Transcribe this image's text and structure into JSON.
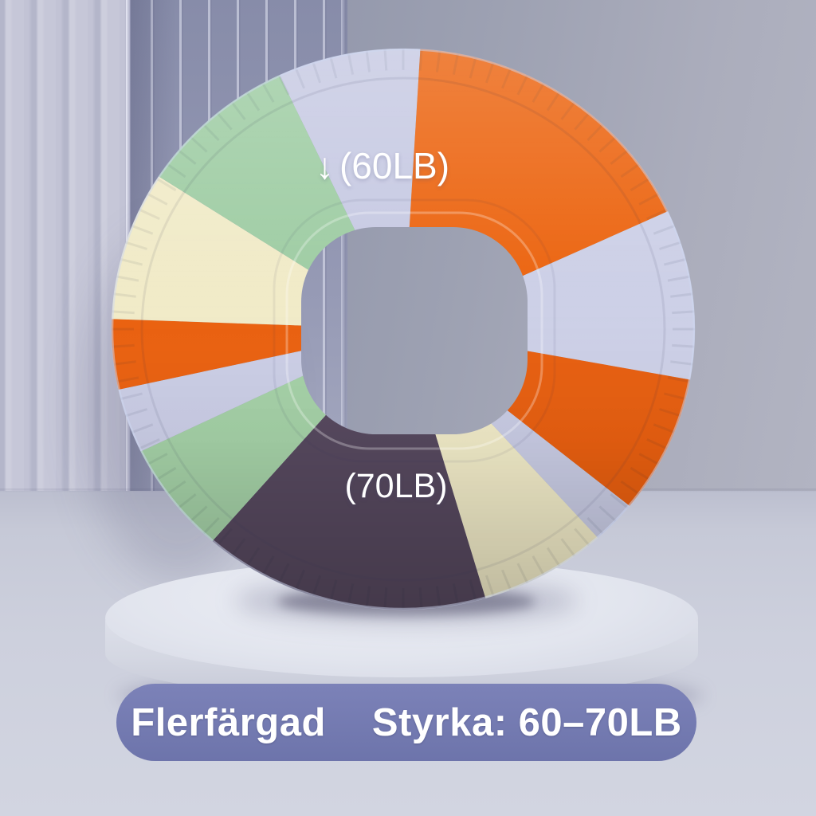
{
  "scene": {
    "alt": "Multicolored silicone grip ring standing upright on a round white podium"
  },
  "ring": {
    "label_top_arrow": "↓",
    "label_top": "(60LB)",
    "label_bottom": "(70LB)",
    "label_color": "#ffffff",
    "segments": [
      {
        "name": "lavender-top",
        "color": "#c7cae3",
        "from": 334,
        "to": 363.5
      },
      {
        "name": "orange-top",
        "color": "#ec6511",
        "from": 3.5,
        "to": 66
      },
      {
        "name": "lavender-right",
        "color": "#cdd0e7",
        "from": 66,
        "to": 100
      },
      {
        "name": "orange-right",
        "color": "#e85f10",
        "from": 100,
        "to": 128
      },
      {
        "name": "lavender-sliver-right",
        "color": "#c9cce4",
        "from": 128,
        "to": 137
      },
      {
        "name": "cream-right",
        "color": "#f1ebc8",
        "from": 137,
        "to": 163
      },
      {
        "name": "purple-bottom",
        "color": "#57495f",
        "from": 163,
        "to": 222
      },
      {
        "name": "green-left-lower",
        "color": "#a5d1a7",
        "from": 222,
        "to": 245
      },
      {
        "name": "lavender-left",
        "color": "#cbcee6",
        "from": 245,
        "to": 258
      },
      {
        "name": "orange-left",
        "color": "#ea6110",
        "from": 258,
        "to": 272
      },
      {
        "name": "cream-left",
        "color": "#f1ebc8",
        "from": 272,
        "to": 302
      },
      {
        "name": "green-top-left",
        "color": "#9fcda4",
        "from": 302,
        "to": 334
      }
    ]
  },
  "banner": {
    "color_label": "Flerfärgad",
    "strength_label": "Styrka: 60–70LB",
    "bg_top": "#7c82b8",
    "bg_bottom": "#6d74ab",
    "text_color": "#ffffff"
  },
  "palette": {
    "orange": "#ec6511",
    "lavender": "#c9cce5",
    "cream": "#f1ebc8",
    "green": "#a5d1a7",
    "dark_purple": "#57495f",
    "wall": "#8f94a9",
    "fluted_panel": "#c5c6d7",
    "floor": "#cdd0dd",
    "podium": "#e2e5ee"
  }
}
